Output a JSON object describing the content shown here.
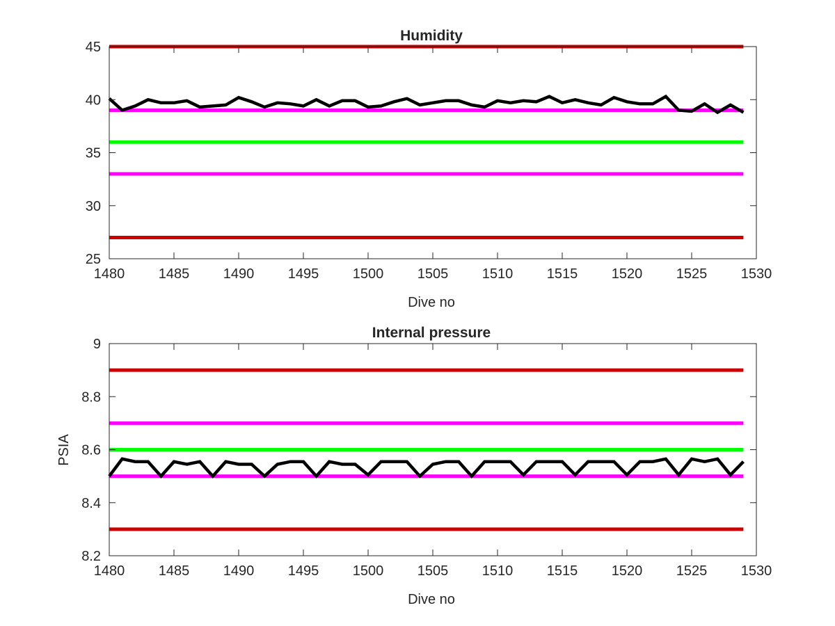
{
  "colors": {
    "red": "#cc0000",
    "magenta": "#ff00ff",
    "green": "#00ff00",
    "data": "#000000",
    "axes": "#262626"
  },
  "chart_data": [
    {
      "type": "line",
      "title": "Humidity",
      "xlabel": "Dive no",
      "ylabel": "",
      "xlim": [
        1480,
        1530
      ],
      "ylim": [
        25,
        45
      ],
      "xticks": [
        "1480",
        "1485",
        "1490",
        "1495",
        "1500",
        "1505",
        "1510",
        "1515",
        "1520",
        "1525",
        "1530"
      ],
      "yticks": [
        "25",
        "30",
        "35",
        "40",
        "45"
      ],
      "thresholds": [
        {
          "value": 45,
          "color": "red"
        },
        {
          "value": 39,
          "color": "magenta"
        },
        {
          "value": 36,
          "color": "green"
        },
        {
          "value": 33,
          "color": "magenta"
        },
        {
          "value": 27,
          "color": "red"
        }
      ],
      "series": [
        {
          "x": [
            1480,
            1481,
            1482,
            1483,
            1484,
            1485,
            1486,
            1487,
            1488,
            1489,
            1490,
            1491,
            1492,
            1493,
            1494,
            1495,
            1496,
            1497,
            1498,
            1499,
            1500,
            1501,
            1502,
            1503,
            1504,
            1505,
            1506,
            1507,
            1508,
            1509,
            1510,
            1511,
            1512,
            1513,
            1514,
            1515,
            1516,
            1517,
            1518,
            1519,
            1520,
            1521,
            1522,
            1523,
            1524,
            1525,
            1526,
            1527,
            1528,
            1529
          ],
          "y": [
            40.1,
            39.0,
            39.4,
            40.0,
            39.7,
            39.7,
            39.9,
            39.3,
            39.4,
            39.5,
            40.2,
            39.8,
            39.3,
            39.7,
            39.6,
            39.4,
            40.0,
            39.4,
            39.9,
            39.9,
            39.3,
            39.4,
            39.8,
            40.1,
            39.5,
            39.7,
            39.9,
            39.9,
            39.5,
            39.3,
            39.9,
            39.7,
            39.9,
            39.8,
            40.3,
            39.7,
            40.0,
            39.7,
            39.5,
            40.2,
            39.8,
            39.6,
            39.6,
            40.3,
            39.0,
            38.9,
            39.6,
            38.8,
            39.5,
            38.8
          ]
        }
      ]
    },
    {
      "type": "line",
      "title": "Internal pressure",
      "xlabel": "Dive no",
      "ylabel": "PSIA",
      "xlim": [
        1480,
        1530
      ],
      "ylim": [
        8.2,
        9.0
      ],
      "xticks": [
        "1480",
        "1485",
        "1490",
        "1495",
        "1500",
        "1505",
        "1510",
        "1515",
        "1520",
        "1525",
        "1530"
      ],
      "yticks": [
        "8.2",
        "8.4",
        "8.6",
        "8.8",
        "9"
      ],
      "thresholds": [
        {
          "value": 8.9,
          "color": "red"
        },
        {
          "value": 8.7,
          "color": "magenta"
        },
        {
          "value": 8.6,
          "color": "green"
        },
        {
          "value": 8.5,
          "color": "magenta"
        },
        {
          "value": 8.3,
          "color": "red"
        }
      ],
      "series": [
        {
          "x": [
            1480,
            1481,
            1482,
            1483,
            1484,
            1485,
            1486,
            1487,
            1488,
            1489,
            1490,
            1491,
            1492,
            1493,
            1494,
            1495,
            1496,
            1497,
            1498,
            1499,
            1500,
            1501,
            1502,
            1503,
            1504,
            1505,
            1506,
            1507,
            1508,
            1509,
            1510,
            1511,
            1512,
            1513,
            1514,
            1515,
            1516,
            1517,
            1518,
            1519,
            1520,
            1521,
            1522,
            1523,
            1524,
            1525,
            1526,
            1527,
            1528,
            1529
          ],
          "y": [
            8.5,
            8.565,
            8.555,
            8.555,
            8.5,
            8.555,
            8.545,
            8.555,
            8.5,
            8.555,
            8.545,
            8.545,
            8.5,
            8.545,
            8.555,
            8.555,
            8.5,
            8.555,
            8.545,
            8.545,
            8.505,
            8.555,
            8.555,
            8.555,
            8.5,
            8.545,
            8.555,
            8.555,
            8.5,
            8.555,
            8.555,
            8.555,
            8.505,
            8.555,
            8.555,
            8.555,
            8.505,
            8.555,
            8.555,
            8.555,
            8.505,
            8.555,
            8.555,
            8.565,
            8.505,
            8.565,
            8.555,
            8.565,
            8.505,
            8.555
          ]
        }
      ]
    }
  ]
}
